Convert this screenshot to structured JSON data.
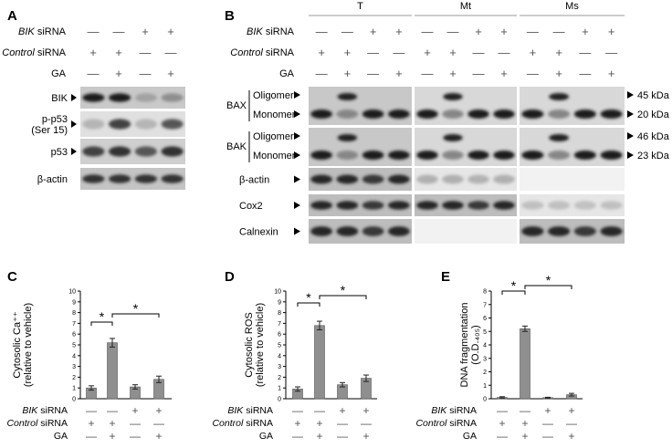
{
  "panels": {
    "A": {
      "letter": "A",
      "rows": [
        {
          "name": "BIK",
          "suffix": " siRNA",
          "italic": true,
          "signs": [
            "—",
            "—",
            "+",
            "+"
          ]
        },
        {
          "name": "Control",
          "suffix": " siRNA",
          "italic": true,
          "signs": [
            "+",
            "+",
            "—",
            "—"
          ]
        },
        {
          "name": "GA",
          "suffix": "",
          "italic": false,
          "signs": [
            "—",
            "+",
            "—",
            "+"
          ]
        }
      ],
      "blots": [
        {
          "label": "BIK",
          "bands": [
            0.9,
            0.9,
            0.2,
            0.3
          ]
        },
        {
          "label": "p-p53",
          "label2": "(Ser 15)",
          "bands": [
            0.1,
            0.7,
            0.1,
            0.6
          ]
        },
        {
          "label": "p53",
          "bands": [
            0.7,
            0.8,
            0.6,
            0.8
          ]
        },
        {
          "label": "β-actin",
          "bands": [
            0.8,
            0.8,
            0.8,
            0.8
          ]
        }
      ]
    },
    "B": {
      "letter": "B",
      "fractions": [
        "T",
        "Mt",
        "Ms"
      ],
      "rows": [
        {
          "name": "BIK",
          "suffix": " siRNA",
          "italic": true,
          "signs": [
            "—",
            "—",
            "+",
            "+",
            "—",
            "—",
            "+",
            "+",
            "—",
            "—",
            "+",
            "+"
          ]
        },
        {
          "name": "Control",
          "suffix": " siRNA",
          "italic": true,
          "signs": [
            "+",
            "+",
            "—",
            "—",
            "+",
            "+",
            "—",
            "—",
            "+",
            "+",
            "—",
            "—"
          ]
        },
        {
          "name": "GA",
          "suffix": "",
          "italic": false,
          "signs": [
            "—",
            "+",
            "—",
            "+",
            "—",
            "+",
            "—",
            "+",
            "—",
            "+",
            "—",
            "+"
          ]
        }
      ],
      "groups": [
        {
          "label": "BAX",
          "sub": [
            "Oligomer",
            "Monomer"
          ],
          "sizes": [
            "45 kDa",
            "20 kDa"
          ]
        },
        {
          "label": "BAK",
          "sub": [
            "Oligomer",
            "Monomer"
          ],
          "sizes": [
            "46 kDa",
            "23 kDa"
          ]
        }
      ],
      "blots": [
        {
          "label": "β-actin"
        },
        {
          "label": "Cox2"
        },
        {
          "label": "Calnexin"
        }
      ]
    }
  },
  "charts": [
    {
      "letter": "C",
      "ylabel": "Cytosolic Ca⁺⁺",
      "ylabel2": "(relative to vehicle)"
    },
    {
      "letter": "D",
      "ylabel": "Cytosolic ROS",
      "ylabel2": "(relative to vehicle)"
    },
    {
      "letter": "E",
      "ylabel": "DNA fragmentation",
      "ylabel2": "(O.D.₄₀₅)"
    }
  ],
  "chart_rows": [
    {
      "name": "BIK",
      "suffix": " siRNA",
      "italic": true,
      "signs": [
        "—",
        "—",
        "+",
        "+"
      ]
    },
    {
      "name": "Control",
      "suffix": " siRNA",
      "italic": true,
      "signs": [
        "+",
        "+",
        "—",
        "—"
      ]
    },
    {
      "name": "GA",
      "suffix": "",
      "italic": false,
      "signs": [
        "—",
        "+",
        "—",
        "+"
      ]
    }
  ],
  "chart_data": [
    {
      "type": "bar",
      "categories": [
        "1",
        "2",
        "3",
        "4"
      ],
      "values": [
        1.0,
        5.2,
        1.1,
        1.8
      ],
      "errors": [
        0.2,
        0.4,
        0.2,
        0.3
      ],
      "title": "",
      "xlabel": "",
      "ylabel": "Cytosolic Ca⁺⁺ (relative to vehicle)",
      "ylim": [
        0,
        10
      ],
      "yticks": [
        0,
        1,
        2,
        3,
        4,
        5,
        6,
        7,
        8,
        9,
        10
      ],
      "significance": [
        {
          "from": 0,
          "to": 1,
          "label": "*"
        },
        {
          "from": 1,
          "to": 3,
          "label": "*"
        }
      ],
      "grid": false
    },
    {
      "type": "bar",
      "categories": [
        "1",
        "2",
        "3",
        "4"
      ],
      "values": [
        0.9,
        6.8,
        1.3,
        1.9
      ],
      "errors": [
        0.2,
        0.4,
        0.2,
        0.3
      ],
      "title": "",
      "xlabel": "",
      "ylabel": "Cytosolic ROS (relative to vehicle)",
      "ylim": [
        0,
        10
      ],
      "yticks": [
        0,
        1,
        2,
        3,
        4,
        5,
        6,
        7,
        8,
        9,
        10
      ],
      "significance": [
        {
          "from": 0,
          "to": 1,
          "label": "*"
        },
        {
          "from": 1,
          "to": 3,
          "label": "*"
        }
      ],
      "grid": false
    },
    {
      "type": "bar",
      "categories": [
        "1",
        "2",
        "3",
        "4"
      ],
      "values": [
        0.1,
        5.2,
        0.08,
        0.3
      ],
      "errors": [
        0.05,
        0.2,
        0.03,
        0.1
      ],
      "title": "",
      "xlabel": "",
      "ylabel": "DNA fragmentation (O.D.₄₀₅)",
      "ylim": [
        0,
        8
      ],
      "yticks": [
        0,
        1,
        2,
        3,
        4,
        5,
        6,
        7,
        8
      ],
      "significance": [
        {
          "from": 0,
          "to": 1,
          "label": "*"
        },
        {
          "from": 1,
          "to": 3,
          "label": "*"
        }
      ],
      "grid": false
    }
  ]
}
